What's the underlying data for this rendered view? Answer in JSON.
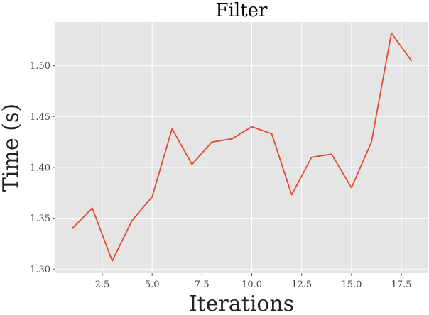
{
  "chart_data": {
    "type": "line",
    "title": "Filter",
    "xlabel": "Iterations",
    "ylabel": "Time (s)",
    "x": [
      1,
      2,
      3,
      4,
      5,
      6,
      7,
      8,
      9,
      10,
      11,
      12,
      13,
      14,
      15,
      16,
      17,
      18
    ],
    "series": [
      {
        "values": [
          1.34,
          1.36,
          1.308,
          1.348,
          1.371,
          1.438,
          1.403,
          1.425,
          1.428,
          1.44,
          1.433,
          1.373,
          1.41,
          1.413,
          1.38,
          1.425,
          1.532,
          1.505
        ],
        "color": "#E24A33"
      }
    ],
    "xlim": [
      0.15,
      18.85
    ],
    "ylim": [
      1.296,
      1.543
    ],
    "x_ticks": [
      2.5,
      5.0,
      7.5,
      10.0,
      12.5,
      15.0,
      17.5
    ],
    "x_tick_labels": [
      "2.5",
      "5.0",
      "7.5",
      "10.0",
      "12.5",
      "15.0",
      "17.5"
    ],
    "y_ticks": [
      1.3,
      1.35,
      1.4,
      1.45,
      1.5
    ],
    "y_tick_labels": [
      "1.30",
      "1.35",
      "1.40",
      "1.45",
      "1.50"
    ],
    "grid": true,
    "background_color": "#E5E5E5"
  }
}
